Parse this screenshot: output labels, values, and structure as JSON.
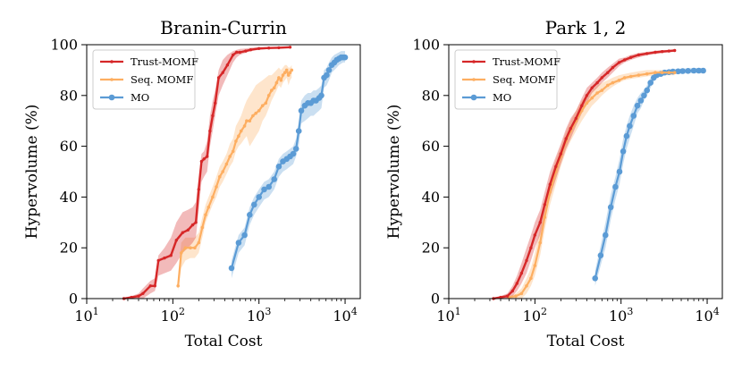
{
  "chart_data": [
    {
      "type": "line",
      "title": "Branin-Currin",
      "xlabel": "Total Cost",
      "ylabel": "Hypervolume (%)",
      "xscale": "log",
      "xlim": [
        10,
        15000
      ],
      "ylim": [
        0,
        100
      ],
      "xticks": [
        {
          "value": 10,
          "base": "10",
          "exp": "1"
        },
        {
          "value": 100,
          "base": "10",
          "exp": "2"
        },
        {
          "value": 1000,
          "base": "10",
          "exp": "3"
        },
        {
          "value": 10000,
          "base": "10",
          "exp": "4"
        }
      ],
      "yticks": [
        "0",
        "20",
        "40",
        "60",
        "80",
        "100"
      ],
      "legend_position": "top-left",
      "series": [
        {
          "name": "Trust-MOMF",
          "color": "#d62728",
          "x": [
            27,
            33,
            40,
            45,
            55,
            62,
            68,
            80,
            95,
            110,
            130,
            150,
            170,
            185,
            200,
            215,
            230,
            250,
            270,
            290,
            310,
            340,
            380,
            430,
            500,
            550,
            600,
            700,
            800,
            1000,
            1300,
            1700,
            2300
          ],
          "y": [
            0,
            0.5,
            1,
            2,
            5,
            5,
            15,
            16,
            17,
            23,
            26,
            27,
            29,
            30,
            43,
            54,
            55,
            56,
            66,
            72,
            77,
            87,
            89,
            92,
            96,
            97,
            97,
            97.5,
            98,
            98.5,
            98.7,
            98.8,
            99
          ],
          "lower": [
            0,
            0,
            0,
            0,
            2,
            3,
            9,
            10,
            11,
            14,
            18,
            20,
            22,
            24,
            35,
            46,
            48,
            50,
            60,
            66,
            72,
            80,
            84,
            88,
            93,
            95,
            96,
            96.8,
            97.5,
            98,
            98.3,
            98.5,
            98.7
          ],
          "upper": [
            0.5,
            1,
            2,
            4,
            7,
            8,
            17,
            20,
            24,
            30,
            34,
            35,
            36,
            38,
            48,
            57,
            58,
            62,
            72,
            78,
            82,
            90,
            94,
            96,
            97.5,
            98,
            98.3,
            98.5,
            98.8,
            99,
            99.1,
            99.2,
            99.3
          ]
        },
        {
          "name": "Seq. MOMF",
          "color": "#fdae61",
          "x": [
            115,
            125,
            140,
            160,
            180,
            200,
            220,
            240,
            260,
            290,
            320,
            350,
            380,
            420,
            460,
            500,
            540,
            580,
            620,
            680,
            720,
            780,
            850,
            920,
            1000,
            1100,
            1200,
            1300,
            1400,
            1500,
            1600,
            1700,
            1800,
            1900,
            2000,
            2100,
            2200,
            2300,
            2400
          ],
          "y": [
            5,
            18,
            20,
            20,
            20,
            22,
            28,
            33,
            36,
            40,
            44,
            48,
            50,
            53,
            56,
            58,
            62,
            64,
            66,
            68,
            70,
            70,
            72,
            73,
            74,
            76,
            77,
            80,
            82,
            83,
            85,
            87,
            86,
            88,
            89,
            90,
            88,
            89,
            90
          ],
          "lower": [
            3,
            12,
            15,
            16,
            16,
            18,
            24,
            30,
            33,
            37,
            40,
            44,
            46,
            49,
            52,
            54,
            58,
            60,
            61,
            63,
            64,
            60,
            62,
            64,
            66,
            70,
            72,
            75,
            78,
            80,
            82,
            84,
            83,
            85,
            86,
            87,
            84,
            86,
            87
          ],
          "upper": [
            8,
            22,
            24,
            24,
            24,
            26,
            32,
            37,
            40,
            44,
            48,
            52,
            54,
            57,
            61,
            63,
            68,
            70,
            72,
            76,
            78,
            80,
            82,
            84,
            85,
            86,
            87,
            88,
            88,
            89,
            90,
            91,
            90,
            91,
            92,
            92,
            91,
            91,
            92
          ]
        },
        {
          "name": "MO",
          "color": "#5b9bd5",
          "x": [
            480,
            580,
            680,
            780,
            880,
            1000,
            1150,
            1300,
            1500,
            1700,
            1900,
            2100,
            2300,
            2500,
            2700,
            2900,
            3100,
            3400,
            3700,
            4000,
            4300,
            4600,
            5000,
            5300,
            5700,
            6100,
            6500,
            7000,
            7500,
            8000,
            8500,
            9000,
            9500,
            10000
          ],
          "y": [
            12,
            22,
            25,
            33,
            37,
            40,
            43,
            44,
            47,
            52,
            54,
            55,
            56,
            57,
            59,
            66,
            74,
            76,
            77,
            77,
            78,
            78,
            79,
            80,
            87,
            88,
            90,
            92,
            93,
            94,
            94.5,
            95,
            95,
            95
          ],
          "lower": [
            8,
            18,
            21,
            29,
            33,
            36,
            39,
            40,
            43,
            48,
            50,
            51,
            52,
            53,
            56,
            60,
            69,
            70,
            71,
            72,
            72,
            73,
            74,
            75,
            83,
            84,
            86,
            89,
            90,
            91,
            92,
            92.5,
            93,
            93
          ],
          "upper": [
            15,
            25,
            28,
            36,
            40,
            43,
            46,
            47,
            50,
            55,
            57,
            58,
            59,
            60,
            63,
            70,
            78,
            80,
            81,
            81,
            82,
            82,
            83,
            84,
            90,
            91,
            93,
            95,
            96,
            96.5,
            97,
            97.5,
            97.5,
            97.5
          ]
        }
      ]
    },
    {
      "type": "line",
      "title": "Park 1, 2",
      "xlabel": "Total Cost",
      "ylabel": "Hypervolume (%)",
      "xscale": "log",
      "xlim": [
        10,
        15000
      ],
      "ylim": [
        0,
        100
      ],
      "xticks": [
        {
          "value": 10,
          "base": "10",
          "exp": "1"
        },
        {
          "value": 100,
          "base": "10",
          "exp": "2"
        },
        {
          "value": 1000,
          "base": "10",
          "exp": "3"
        },
        {
          "value": 10000,
          "base": "10",
          "exp": "4"
        }
      ],
      "yticks": [
        "0",
        "20",
        "40",
        "60",
        "80",
        "100"
      ],
      "legend_position": "top-left",
      "series": [
        {
          "name": "Trust-MOMF",
          "color": "#d62728",
          "x": [
            33,
            40,
            48,
            55,
            62,
            70,
            80,
            90,
            100,
            115,
            130,
            150,
            175,
            200,
            230,
            260,
            300,
            350,
            400,
            460,
            530,
            600,
            700,
            800,
            950,
            1100,
            1300,
            1600,
            2000,
            2500,
            3000,
            3600,
            4200
          ],
          "y": [
            0,
            0.5,
            1,
            3,
            6,
            10,
            15,
            20,
            25,
            30,
            37,
            45,
            52,
            57,
            63,
            67,
            71,
            76,
            80,
            83,
            85,
            87,
            89,
            91,
            93,
            94,
            95,
            96,
            96.5,
            97,
            97.3,
            97.5,
            97.7
          ],
          "lower": [
            0,
            0,
            0,
            1,
            3,
            6,
            10,
            15,
            20,
            25,
            32,
            40,
            47,
            53,
            59,
            63,
            68,
            73,
            77,
            81,
            83,
            85,
            87,
            89,
            91.5,
            93,
            94,
            95,
            95.8,
            96.3,
            96.7,
            97,
            97.2
          ],
          "upper": [
            0.5,
            1,
            2,
            5,
            9,
            14,
            20,
            25,
            30,
            35,
            42,
            50,
            56,
            61,
            67,
            71,
            74,
            79,
            83,
            85,
            87,
            89,
            91,
            92.5,
            94.5,
            95,
            96,
            96.8,
            97.2,
            97.6,
            97.9,
            98,
            98.2
          ]
        },
        {
          "name": "Seq. MOMF",
          "color": "#fdae61",
          "x": [
            50,
            60,
            70,
            80,
            90,
            100,
            115,
            130,
            150,
            175,
            200,
            230,
            260,
            300,
            350,
            400,
            460,
            530,
            600,
            700,
            800,
            950,
            1100,
            1300,
            1600,
            2000,
            2500,
            3000,
            3600,
            4200
          ],
          "y": [
            0.5,
            1,
            2,
            5,
            8,
            13,
            22,
            32,
            42,
            50,
            56,
            62,
            66,
            70,
            74,
            77,
            79,
            81,
            82,
            84,
            85,
            86,
            87,
            87.5,
            88,
            88.5,
            89,
            89,
            89,
            89
          ],
          "lower": [
            0,
            0,
            0,
            2,
            5,
            9,
            17,
            27,
            37,
            45,
            52,
            58,
            62,
            66,
            70,
            73,
            76,
            78,
            80,
            82,
            83.5,
            85,
            86,
            86.5,
            87,
            87.5,
            88,
            88,
            88,
            88
          ],
          "upper": [
            1,
            2,
            4,
            8,
            12,
            18,
            28,
            38,
            47,
            55,
            60,
            66,
            70,
            74,
            78,
            80,
            82,
            84,
            85,
            86,
            87,
            88,
            88.5,
            89,
            89.5,
            90,
            90,
            90,
            90,
            90
          ]
        },
        {
          "name": "MO",
          "color": "#5b9bd5",
          "x": [
            500,
            580,
            660,
            760,
            860,
            960,
            1060,
            1160,
            1260,
            1400,
            1550,
            1700,
            1850,
            2000,
            2200,
            2400,
            2600,
            2900,
            3200,
            3600,
            4000,
            4600,
            5200,
            6000,
            7000,
            8000,
            9000
          ],
          "y": [
            8,
            17,
            25,
            36,
            44,
            50,
            58,
            64,
            68,
            72,
            76,
            78,
            80,
            82,
            85,
            87,
            88,
            88.5,
            89,
            89.2,
            89.4,
            89.5,
            89.6,
            89.7,
            89.8,
            89.8,
            89.8
          ],
          "lower": [
            5,
            13,
            20,
            31,
            39,
            45,
            53,
            59,
            63,
            68,
            73,
            75,
            78,
            80,
            83,
            85.5,
            87,
            87.5,
            88,
            88.2,
            88.4,
            88.5,
            88.6,
            88.7,
            88.8,
            88.8,
            88.8
          ],
          "upper": [
            11,
            21,
            30,
            41,
            48,
            55,
            63,
            68,
            72,
            76,
            79,
            81,
            82,
            84,
            87,
            88.5,
            89,
            89.5,
            90,
            90.2,
            90.4,
            90.5,
            90.6,
            90.7,
            90.8,
            90.8,
            90.8
          ]
        }
      ]
    }
  ]
}
